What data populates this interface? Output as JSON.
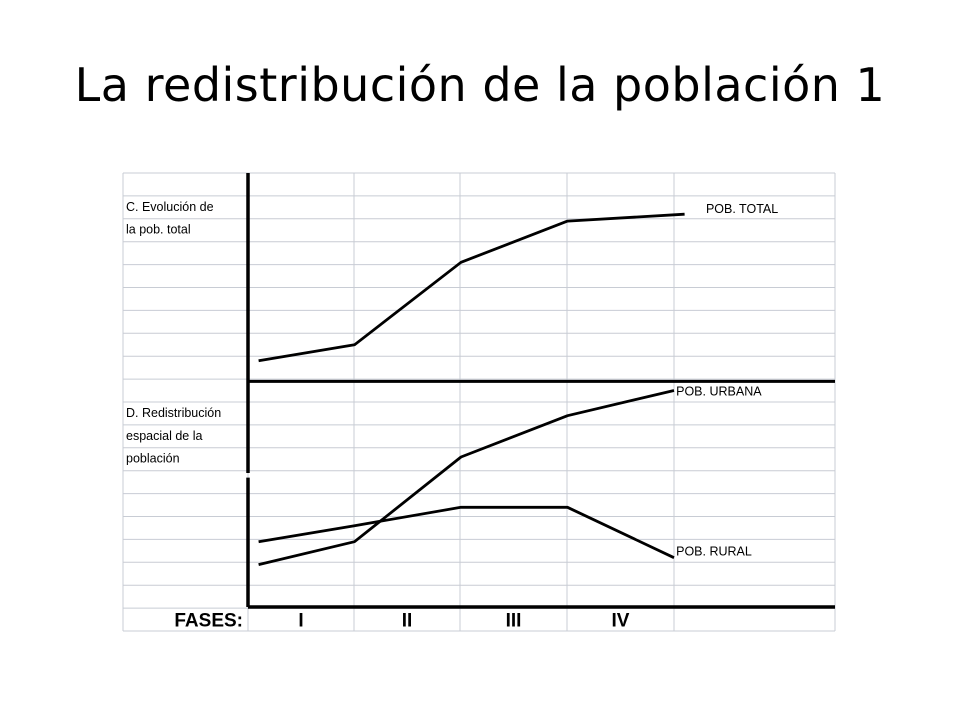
{
  "title": "La redistribución de la población 1",
  "panel_c": {
    "label_lines": [
      "C. Evolución de",
      "la pob. total"
    ],
    "series": [
      {
        "label": "POB. TOTAL",
        "points": [
          [
            0.1,
            8.2
          ],
          [
            1,
            7.5
          ],
          [
            2,
            3.9
          ],
          [
            3,
            2.1
          ],
          [
            4.1,
            1.8
          ]
        ]
      }
    ]
  },
  "panel_d": {
    "label_lines": [
      "D. Redistribución",
      "espacial de la",
      "población"
    ],
    "series": [
      {
        "label": "POB. URBANA",
        "points": [
          [
            0.1,
            17.1
          ],
          [
            1,
            16.1
          ],
          [
            2,
            12.4
          ],
          [
            3,
            10.6
          ],
          [
            4,
            9.5
          ]
        ]
      },
      {
        "label": "POB. RURAL",
        "points": [
          [
            0.1,
            16.1
          ],
          [
            1,
            15.4
          ],
          [
            2,
            14.6
          ],
          [
            3,
            14.6
          ],
          [
            4,
            16.8
          ]
        ]
      }
    ]
  },
  "fases": {
    "label": "FASES:",
    "names": [
      "I",
      "II",
      "III",
      "IV"
    ]
  }
}
